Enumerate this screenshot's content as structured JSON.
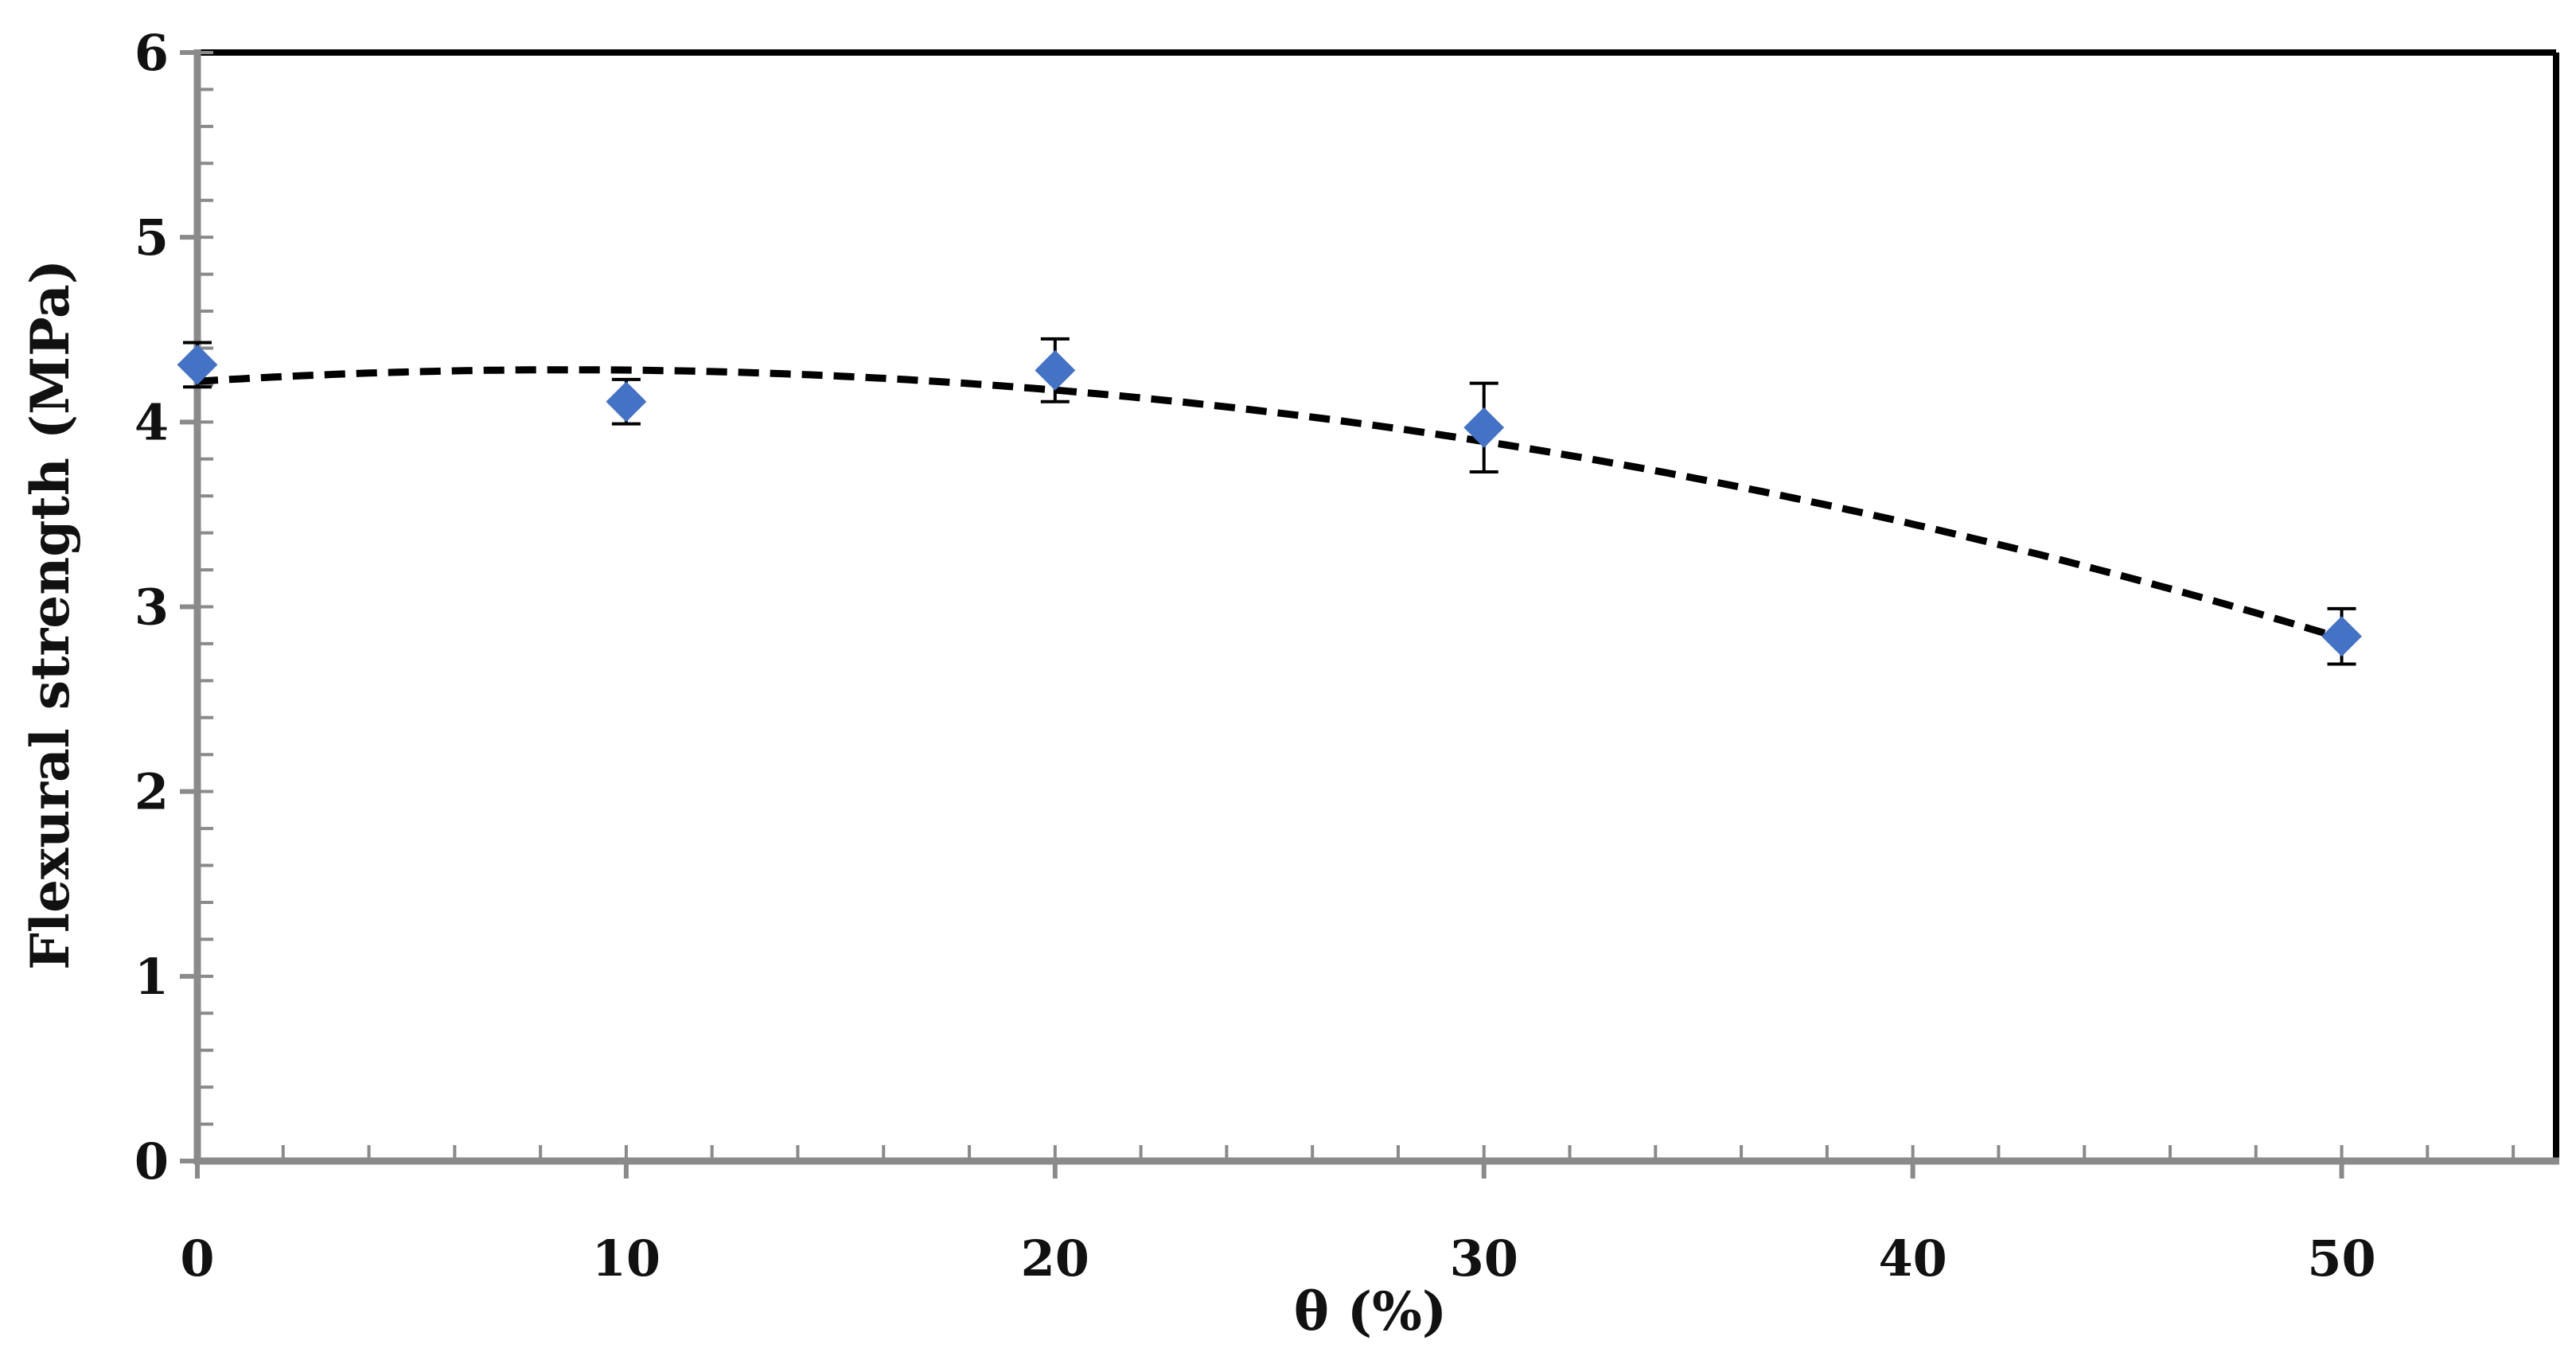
{
  "chart_data": {
    "type": "scatter",
    "title": "",
    "xlabel": "θ (%)",
    "ylabel": "Flexural strength (MPa)",
    "xlim": [
      0,
      55
    ],
    "ylim": [
      0,
      6
    ],
    "x_ticks": [
      0,
      10,
      20,
      30,
      40,
      50
    ],
    "y_ticks": [
      0,
      1,
      2,
      3,
      4,
      5,
      6
    ],
    "x_minor_step": 2,
    "y_minor_step": 0.2,
    "grid": false,
    "legend": "none",
    "series": [
      {
        "x": [
          0,
          10,
          20,
          30,
          50
        ],
        "y": [
          4.31,
          4.11,
          4.28,
          3.97,
          2.84
        ],
        "error": [
          0.12,
          0.12,
          0.17,
          0.24,
          0.15
        ],
        "marker": "diamond",
        "color": "#4472C4"
      }
    ],
    "trendline": {
      "type": "polynomial",
      "order": 2,
      "style": "dashed",
      "color": "#000000",
      "coefficients": [
        4.22,
        0.0146,
        -0.000848
      ]
    }
  }
}
